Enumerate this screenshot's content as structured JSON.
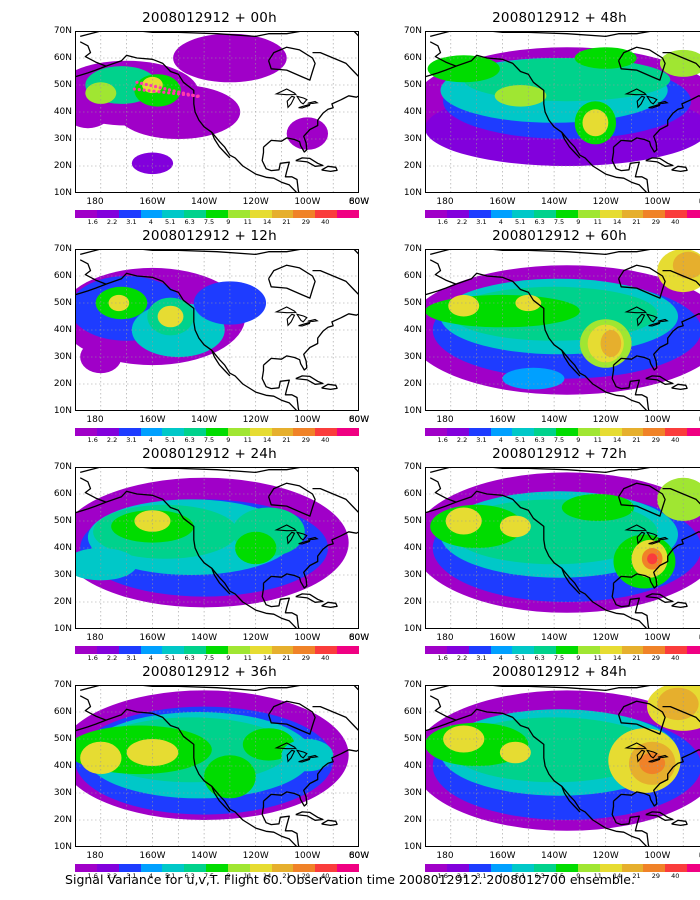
{
  "panels": [
    {
      "title": "2008012912  + 00h"
    },
    {
      "title": "2008012912  + 48h"
    },
    {
      "title": "2008012912  + 12h"
    },
    {
      "title": "2008012912  + 60h"
    },
    {
      "title": "2008012912  + 24h"
    },
    {
      "title": "2008012912  + 72h"
    },
    {
      "title": "2008012912  + 36h"
    },
    {
      "title": "2008012912  + 84h"
    }
  ],
  "axes": {
    "lat_labels": [
      "70N",
      "60N",
      "50N",
      "40N",
      "30N",
      "20N",
      "10N"
    ],
    "lon_labels": [
      "180",
      "160W",
      "140W",
      "120W",
      "100W",
      "80W",
      "60W"
    ]
  },
  "colorbar": {
    "labels": [
      "1.6",
      "2.2",
      "3.1",
      "4",
      "5.1",
      "6.3",
      "7.5",
      "9",
      "11",
      "14",
      "21",
      "29",
      "40"
    ],
    "colors": [
      "#a000c8",
      "#8200dc",
      "#1e3cff",
      "#00a0ff",
      "#00c8c8",
      "#00d28c",
      "#00dc00",
      "#a0e632",
      "#e6dc32",
      "#e6af2d",
      "#f08228",
      "#fa3c3c",
      "#f00082"
    ]
  },
  "caption": "Signal Variance for u,v,T. Flight 60. Observation time 2008012912. 2008012700 ensemble."
}
